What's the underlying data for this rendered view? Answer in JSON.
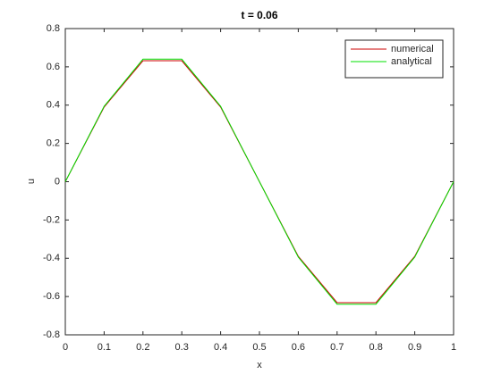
{
  "chart_data": {
    "type": "line",
    "title": "t = 0.06",
    "xlabel": "x",
    "ylabel": "u",
    "x": [
      0,
      0.1,
      0.2,
      0.3,
      0.4,
      0.5,
      0.6,
      0.7,
      0.8,
      0.9,
      1
    ],
    "series": [
      {
        "name": "numerical",
        "color": "#cc0000",
        "values": [
          0,
          0.39,
          0.632,
          0.632,
          0.39,
          0,
          -0.39,
          -0.632,
          -0.632,
          -0.39,
          0
        ]
      },
      {
        "name": "analytical",
        "color": "#00e000",
        "values": [
          0,
          0.394,
          0.64,
          0.64,
          0.394,
          0,
          -0.394,
          -0.64,
          -0.64,
          -0.394,
          0
        ]
      }
    ],
    "xlim": [
      0,
      1
    ],
    "xticks": [
      0,
      0.1,
      0.2,
      0.3,
      0.4,
      0.5,
      0.6,
      0.7,
      0.8,
      0.9,
      1
    ],
    "ylim": [
      -0.8,
      0.8
    ],
    "yticks": [
      -0.8,
      -0.6,
      -0.4,
      -0.2,
      0,
      0.2,
      0.4,
      0.6,
      0.8
    ],
    "grid": false,
    "legend": "northeast"
  }
}
